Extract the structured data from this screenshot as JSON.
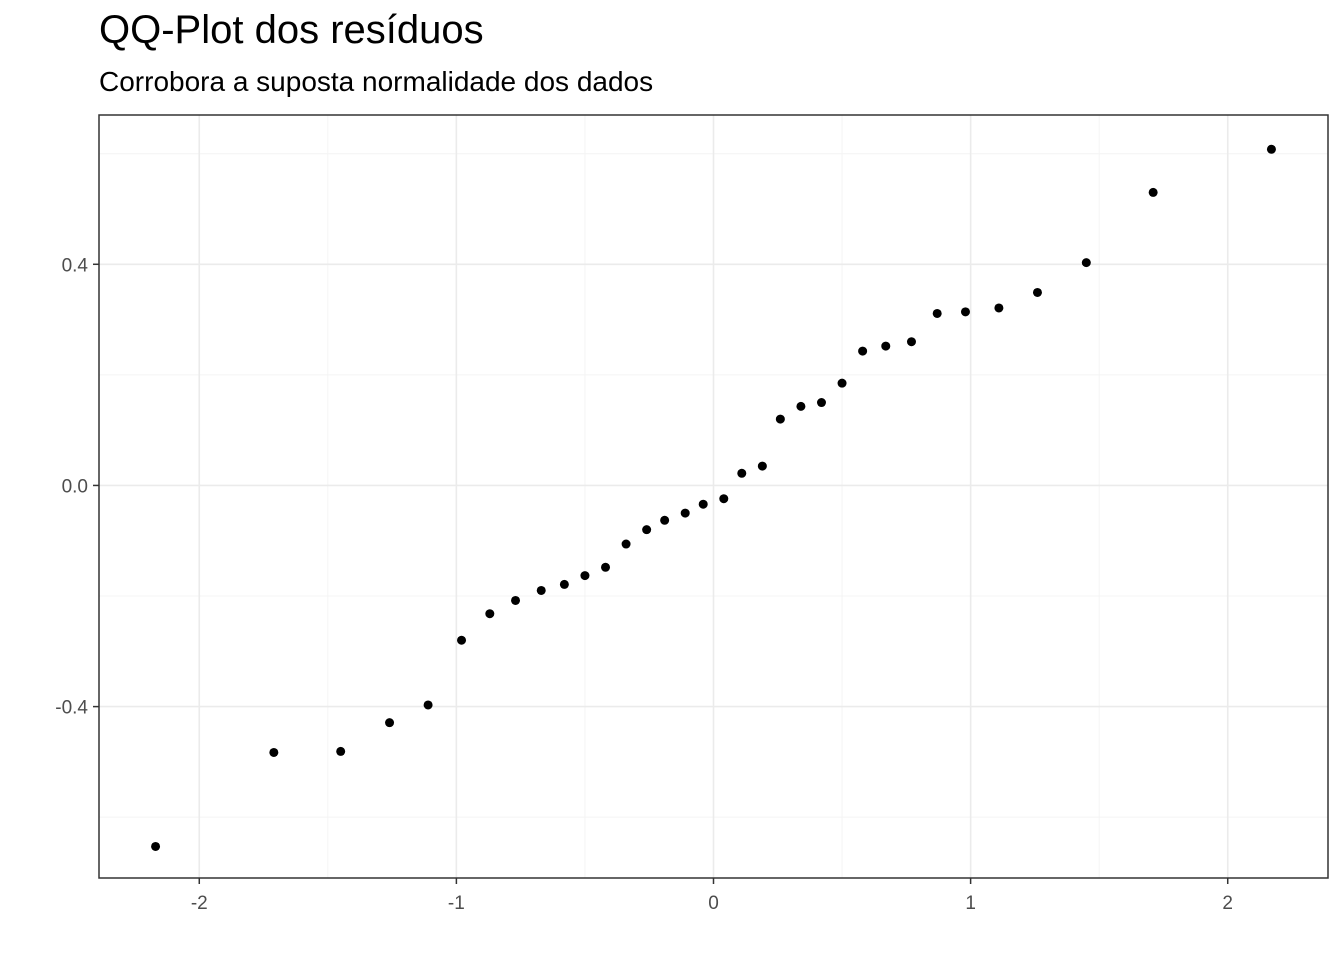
{
  "title": "QQ-Plot dos resíduos",
  "subtitle": "Corrobora a suposta normalidade dos dados",
  "chart_data": {
    "type": "scatter",
    "title": "QQ-Plot dos resíduos",
    "subtitle": "Corrobora a suposta normalidade dos dados",
    "xlabel": "",
    "ylabel": "",
    "xlim": [
      -2.39,
      2.39
    ],
    "ylim": [
      -0.71,
      0.67
    ],
    "grid": true,
    "x_ticks": [
      -2,
      -1,
      0,
      1,
      2
    ],
    "x_tick_labels": [
      "-2",
      "-1",
      "0",
      "1",
      "2"
    ],
    "y_ticks": [
      -0.4,
      0.0,
      0.4
    ],
    "y_tick_labels": [
      "-0.4",
      "0.0",
      "0.4"
    ],
    "point_color": "#000000",
    "points": [
      {
        "x": -2.17,
        "y": -0.653
      },
      {
        "x": -1.71,
        "y": -0.483
      },
      {
        "x": -1.45,
        "y": -0.481
      },
      {
        "x": -1.26,
        "y": -0.429
      },
      {
        "x": -1.11,
        "y": -0.397
      },
      {
        "x": -0.98,
        "y": -0.28
      },
      {
        "x": -0.87,
        "y": -0.232
      },
      {
        "x": -0.77,
        "y": -0.208
      },
      {
        "x": -0.67,
        "y": -0.19
      },
      {
        "x": -0.58,
        "y": -0.179
      },
      {
        "x": -0.5,
        "y": -0.163
      },
      {
        "x": -0.42,
        "y": -0.148
      },
      {
        "x": -0.34,
        "y": -0.106
      },
      {
        "x": -0.26,
        "y": -0.08
      },
      {
        "x": -0.19,
        "y": -0.063
      },
      {
        "x": -0.11,
        "y": -0.05
      },
      {
        "x": -0.04,
        "y": -0.034
      },
      {
        "x": 0.04,
        "y": -0.024
      },
      {
        "x": 0.11,
        "y": 0.022
      },
      {
        "x": 0.19,
        "y": 0.035
      },
      {
        "x": 0.26,
        "y": 0.12
      },
      {
        "x": 0.34,
        "y": 0.143
      },
      {
        "x": 0.42,
        "y": 0.15
      },
      {
        "x": 0.5,
        "y": 0.185
      },
      {
        "x": 0.58,
        "y": 0.243
      },
      {
        "x": 0.67,
        "y": 0.252
      },
      {
        "x": 0.77,
        "y": 0.26
      },
      {
        "x": 0.87,
        "y": 0.311
      },
      {
        "x": 0.98,
        "y": 0.314
      },
      {
        "x": 1.11,
        "y": 0.321
      },
      {
        "x": 1.26,
        "y": 0.349
      },
      {
        "x": 1.45,
        "y": 0.403
      },
      {
        "x": 1.71,
        "y": 0.53
      },
      {
        "x": 2.17,
        "y": 0.608
      }
    ]
  }
}
